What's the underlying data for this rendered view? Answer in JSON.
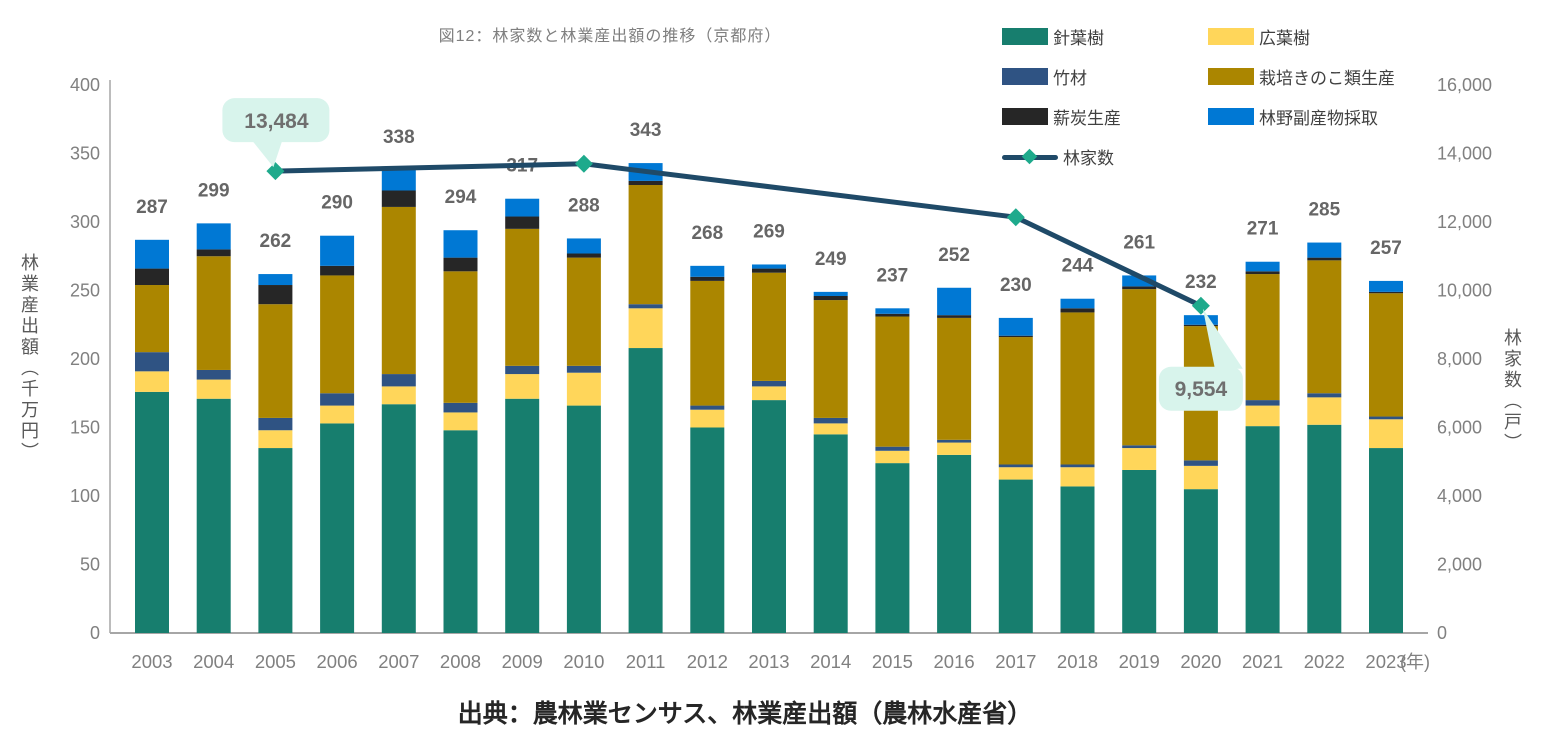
{
  "page": {
    "title": "図12：林家数と林業産出額の推移（京都府）",
    "source": "出典：農林業センサス、林業産出額（農林水産省）"
  },
  "chart_data": {
    "type": "bar",
    "subtype": "stacked-bars-with-line-overlay",
    "categories": [
      "2003",
      "2004",
      "2005",
      "2006",
      "2007",
      "2008",
      "2009",
      "2010",
      "2011",
      "2012",
      "2013",
      "2014",
      "2015",
      "2016",
      "2017",
      "2018",
      "2019",
      "2020",
      "2021",
      "2022",
      "2023"
    ],
    "x_unit": "(年)",
    "left_axis": {
      "title": "林業産出額（千万円）",
      "min": 0,
      "max": 400,
      "step": 50
    },
    "right_axis": {
      "title": "林家数（戸）",
      "min": 0,
      "max": 16000,
      "step": 2000
    },
    "bar_series": [
      {
        "name": "針葉樹",
        "color": "#177E6E",
        "values": [
          176,
          171,
          135,
          153,
          167,
          148,
          171,
          166,
          208,
          150,
          170,
          145,
          124,
          130,
          112,
          107,
          119,
          105,
          151,
          152,
          135
        ]
      },
      {
        "name": "広葉樹",
        "color": "#FFD65A",
        "values": [
          15,
          14,
          13,
          13,
          13,
          13,
          18,
          24,
          29,
          13,
          10,
          8,
          9,
          9,
          9,
          14,
          16,
          17,
          15,
          20,
          21
        ]
      },
      {
        "name": "竹材",
        "color": "#2F5383",
        "values": [
          14,
          7,
          9,
          9,
          9,
          7,
          6,
          5,
          3,
          3,
          4,
          4,
          3,
          2,
          2,
          2,
          2,
          4,
          4,
          3,
          2
        ]
      },
      {
        "name": "栽培きのこ類生産",
        "color": "#AB8600",
        "values": [
          49,
          83,
          83,
          86,
          122,
          96,
          100,
          79,
          87,
          91,
          79,
          86,
          95,
          89,
          93,
          111,
          114,
          98,
          92,
          97,
          90
        ]
      },
      {
        "name": "薪炭生産",
        "color": "#262626",
        "values": [
          12,
          5,
          14,
          7,
          12,
          10,
          9,
          3,
          3,
          3,
          3,
          3,
          2,
          2,
          1,
          3,
          2,
          1,
          2,
          2,
          1
        ]
      },
      {
        "name": "林野副産物採取",
        "color": "#0078D4",
        "values": [
          21,
          19,
          8,
          22,
          15,
          20,
          13,
          11,
          13,
          8,
          3,
          3,
          4,
          20,
          13,
          7,
          8,
          7,
          7,
          11,
          8
        ]
      }
    ],
    "bar_totals": [
      287,
      299,
      262,
      290,
      338,
      294,
      317,
      288,
      343,
      268,
      269,
      249,
      237,
      252,
      230,
      244,
      261,
      232,
      271,
      285,
      257
    ],
    "line_series": {
      "name": "林家数",
      "color": "#1F4A68",
      "marker_color": "#1EAA8C",
      "points": [
        {
          "year": "2005",
          "value": 13484
        },
        {
          "year": "2010",
          "value": 13700
        },
        {
          "year": "2017",
          "value": 12140
        },
        {
          "year": "2020",
          "value": 9554
        }
      ]
    },
    "callouts": [
      {
        "label": "13,484",
        "year": "2005",
        "position": "above"
      },
      {
        "label": "9,554",
        "year": "2020",
        "position": "below"
      }
    ],
    "legend": {
      "position": "top-right",
      "columns": 2,
      "items": [
        {
          "label": "針葉樹",
          "type": "box",
          "color": "#177E6E"
        },
        {
          "label": "広葉樹",
          "type": "box",
          "color": "#FFD65A"
        },
        {
          "label": "竹材",
          "type": "box",
          "color": "#2F5383"
        },
        {
          "label": "栽培きのこ類生産",
          "type": "box",
          "color": "#AB8600"
        },
        {
          "label": "薪炭生産",
          "type": "box",
          "color": "#262626"
        },
        {
          "label": "林野副産物採取",
          "type": "box",
          "color": "#0078D4"
        },
        {
          "label": "林家数",
          "type": "line",
          "color": "#1F4A68",
          "marker_color": "#1EAA8C"
        }
      ]
    },
    "style_colors": {
      "axis_line": "#A6A6A6",
      "tick_label": "#808080",
      "total_label": "#666666",
      "callout_bg": "#D8F4EC",
      "callout_text": "#6F6F6F",
      "title_gray": "#7F7F7F"
    }
  }
}
